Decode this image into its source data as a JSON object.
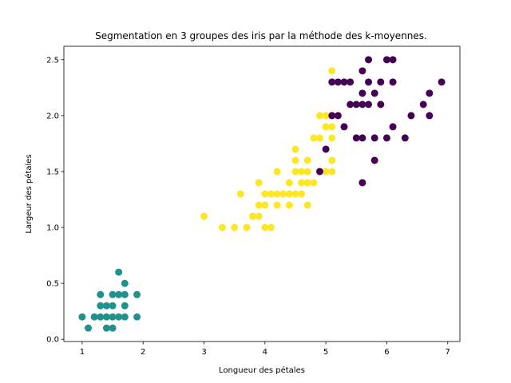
{
  "chart_data": {
    "type": "scatter",
    "title": "Segmentation en 3 groupes des iris par la méthode des k-moyennes.",
    "xlabel": "Longueur des pétales",
    "ylabel": "Largeur des pétales",
    "xlim": [
      0.7,
      7.2
    ],
    "ylim": [
      -0.02,
      2.62
    ],
    "xticks": [
      1,
      2,
      3,
      4,
      5,
      6,
      7
    ],
    "xtick_labels": [
      "1",
      "2",
      "3",
      "4",
      "5",
      "6",
      "7"
    ],
    "yticks": [
      0.0,
      0.5,
      1.0,
      1.5,
      2.0,
      2.5
    ],
    "ytick_labels": [
      "0.0",
      "0.5",
      "1.0",
      "1.5",
      "2.0",
      "2.5"
    ],
    "grid": false,
    "legend": false,
    "series": [
      {
        "color": "#21918c",
        "points": [
          [
            1.0,
            0.2
          ],
          [
            1.1,
            0.1
          ],
          [
            1.2,
            0.2
          ],
          [
            1.3,
            0.2
          ],
          [
            1.3,
            0.3
          ],
          [
            1.3,
            0.4
          ],
          [
            1.4,
            0.1
          ],
          [
            1.4,
            0.2
          ],
          [
            1.4,
            0.3
          ],
          [
            1.5,
            0.1
          ],
          [
            1.5,
            0.2
          ],
          [
            1.5,
            0.3
          ],
          [
            1.5,
            0.4
          ],
          [
            1.6,
            0.2
          ],
          [
            1.6,
            0.4
          ],
          [
            1.6,
            0.6
          ],
          [
            1.7,
            0.2
          ],
          [
            1.7,
            0.3
          ],
          [
            1.7,
            0.4
          ],
          [
            1.7,
            0.5
          ],
          [
            1.9,
            0.2
          ],
          [
            1.9,
            0.4
          ]
        ]
      },
      {
        "color": "#fde725",
        "points": [
          [
            3.0,
            1.1
          ],
          [
            3.3,
            1.0
          ],
          [
            3.5,
            1.0
          ],
          [
            3.6,
            1.3
          ],
          [
            3.7,
            1.0
          ],
          [
            3.8,
            1.1
          ],
          [
            3.9,
            1.1
          ],
          [
            3.9,
            1.2
          ],
          [
            3.9,
            1.4
          ],
          [
            4.0,
            1.0
          ],
          [
            4.0,
            1.2
          ],
          [
            4.0,
            1.3
          ],
          [
            4.1,
            1.0
          ],
          [
            4.1,
            1.3
          ],
          [
            4.2,
            1.2
          ],
          [
            4.2,
            1.3
          ],
          [
            4.2,
            1.5
          ],
          [
            4.3,
            1.3
          ],
          [
            4.4,
            1.2
          ],
          [
            4.4,
            1.3
          ],
          [
            4.4,
            1.4
          ],
          [
            4.5,
            1.3
          ],
          [
            4.5,
            1.5
          ],
          [
            4.5,
            1.6
          ],
          [
            4.5,
            1.7
          ],
          [
            4.6,
            1.3
          ],
          [
            4.6,
            1.4
          ],
          [
            4.6,
            1.5
          ],
          [
            4.7,
            1.2
          ],
          [
            4.7,
            1.4
          ],
          [
            4.7,
            1.5
          ],
          [
            4.7,
            1.6
          ],
          [
            4.8,
            1.4
          ],
          [
            4.8,
            1.8
          ],
          [
            4.9,
            1.5
          ],
          [
            4.9,
            1.8
          ],
          [
            4.9,
            2.0
          ],
          [
            5.0,
            1.5
          ],
          [
            5.0,
            1.9
          ],
          [
            5.0,
            2.0
          ],
          [
            5.1,
            1.5
          ],
          [
            5.1,
            1.6
          ],
          [
            5.1,
            1.8
          ],
          [
            5.1,
            1.9
          ],
          [
            5.1,
            2.4
          ]
        ]
      },
      {
        "color": "#440154",
        "points": [
          [
            4.9,
            1.5
          ],
          [
            5.0,
            1.7
          ],
          [
            5.1,
            2.0
          ],
          [
            5.1,
            2.3
          ],
          [
            5.2,
            2.0
          ],
          [
            5.2,
            2.3
          ],
          [
            5.3,
            1.9
          ],
          [
            5.3,
            2.3
          ],
          [
            5.4,
            2.1
          ],
          [
            5.4,
            2.3
          ],
          [
            5.5,
            1.8
          ],
          [
            5.5,
            2.1
          ],
          [
            5.6,
            1.4
          ],
          [
            5.6,
            1.8
          ],
          [
            5.6,
            2.1
          ],
          [
            5.6,
            2.2
          ],
          [
            5.6,
            2.4
          ],
          [
            5.7,
            2.1
          ],
          [
            5.7,
            2.3
          ],
          [
            5.7,
            2.5
          ],
          [
            5.8,
            1.6
          ],
          [
            5.8,
            1.8
          ],
          [
            5.8,
            2.2
          ],
          [
            5.9,
            2.1
          ],
          [
            5.9,
            2.3
          ],
          [
            6.0,
            1.8
          ],
          [
            6.0,
            2.5
          ],
          [
            6.1,
            1.9
          ],
          [
            6.1,
            2.3
          ],
          [
            6.1,
            2.5
          ],
          [
            6.3,
            1.8
          ],
          [
            6.4,
            2.0
          ],
          [
            6.6,
            2.1
          ],
          [
            6.7,
            2.0
          ],
          [
            6.7,
            2.2
          ],
          [
            6.9,
            2.3
          ]
        ]
      }
    ]
  }
}
